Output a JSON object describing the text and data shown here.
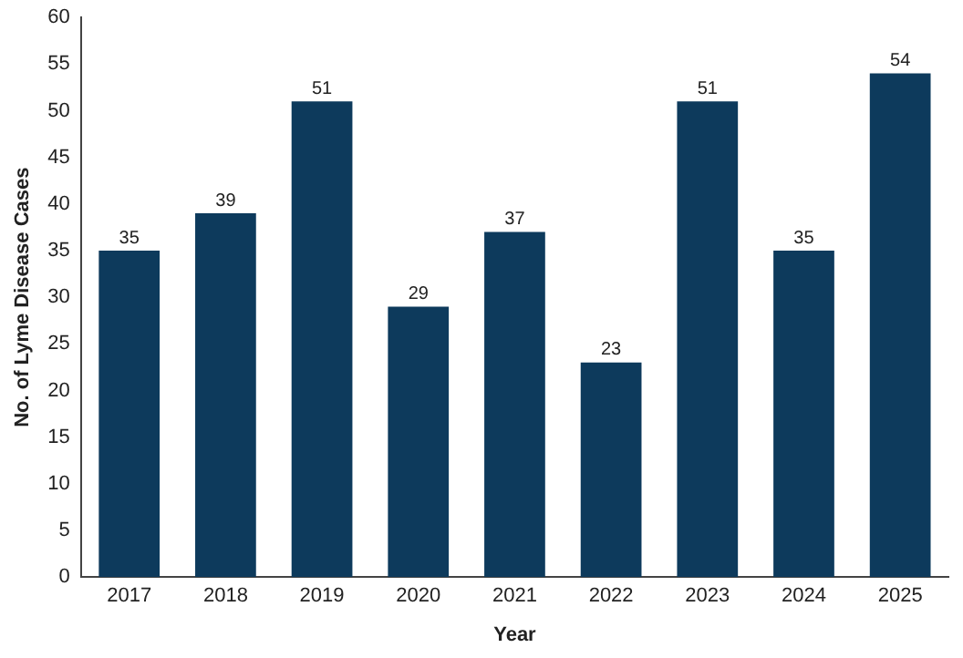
{
  "chart_data": {
    "type": "bar",
    "xlabel": "Year",
    "ylabel": "No. of Lyme Disease Cases",
    "categories": [
      "2017",
      "2018",
      "2019",
      "2020",
      "2021",
      "2022",
      "2023",
      "2024",
      "2025"
    ],
    "values": [
      35,
      39,
      51,
      29,
      37,
      23,
      51,
      35,
      54
    ],
    "color": "#0d3a5c",
    "ylim": [
      0,
      60
    ],
    "yticks": [
      0,
      5,
      10,
      15,
      20,
      25,
      30,
      35,
      40,
      45,
      50,
      55,
      60
    ],
    "grid": false,
    "legend": false,
    "data_labels": true
  }
}
